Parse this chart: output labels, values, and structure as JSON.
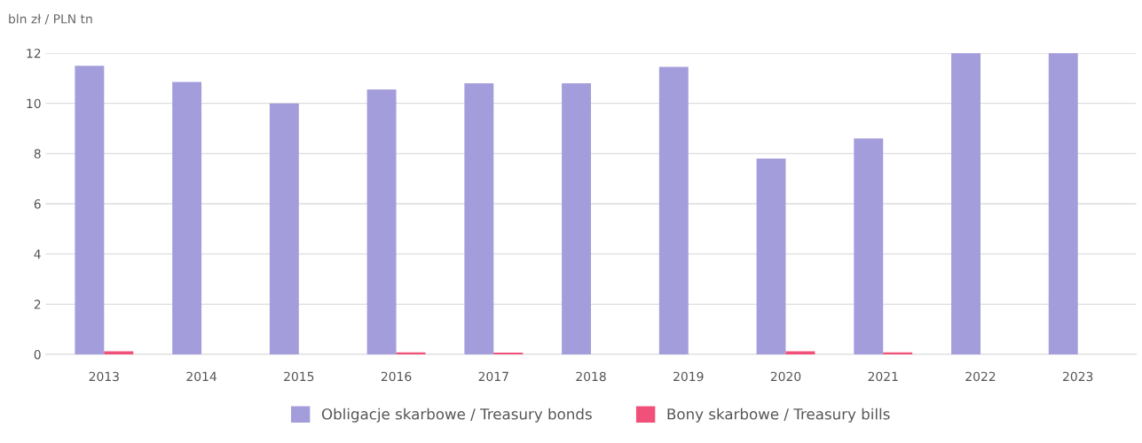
{
  "chart_data": {
    "type": "bar",
    "ylabel": "bln zł / PLN tn",
    "categories": [
      "2013",
      "2014",
      "2015",
      "2016",
      "2017",
      "2018",
      "2019",
      "2020",
      "2021",
      "2022",
      "2023"
    ],
    "series": [
      {
        "name": "Obligacje skarbowe / Treasury bonds",
        "color": "#a39edb",
        "values": [
          11.5,
          10.85,
          10.0,
          10.55,
          10.8,
          10.8,
          11.45,
          7.8,
          8.6,
          12.0,
          12.0
        ]
      },
      {
        "name": "Bony skarbowe / Treasury bills",
        "color": "#f0507a",
        "values": [
          0.12,
          0,
          0,
          0.08,
          0.07,
          0,
          0,
          0.12,
          0.08,
          0,
          0
        ]
      }
    ],
    "ylim": [
      0,
      12
    ],
    "yticks": [
      0,
      2,
      4,
      6,
      8,
      10,
      12
    ],
    "grid": "y",
    "legend": "bottom"
  }
}
